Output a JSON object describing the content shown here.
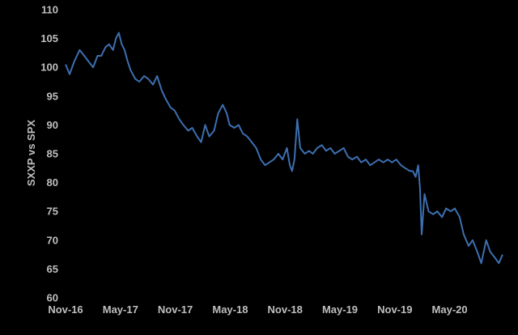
{
  "chart_data": {
    "type": "line",
    "title": "",
    "xlabel": "",
    "ylabel": "SXXP vs SPX",
    "ylim": [
      60,
      110
    ],
    "yticks": [
      "60",
      "65",
      "70",
      "75",
      "80",
      "85",
      "90",
      "95",
      "100",
      "105",
      "110"
    ],
    "xticks": [
      "Nov-16",
      "May-17",
      "Nov-17",
      "May-18",
      "Nov-18",
      "May-19",
      "Nov-19",
      "May-20"
    ],
    "xrange": [
      "2016-11-01",
      "2020-12-31"
    ],
    "grid": false,
    "legend": "none",
    "line_color": "#3d6fb0",
    "series": [
      {
        "x": [
          "2016-11-01",
          "2016-11-15",
          "2016-12-01",
          "2016-12-20",
          "2017-01-05",
          "2017-01-20",
          "2017-02-05",
          "2017-02-20",
          "2017-03-05",
          "2017-03-20",
          "2017-04-01",
          "2017-04-15",
          "2017-04-25",
          "2017-05-05",
          "2017-05-15",
          "2017-05-25",
          "2017-06-05",
          "2017-06-15",
          "2017-07-01",
          "2017-07-15",
          "2017-08-01",
          "2017-08-15",
          "2017-09-01",
          "2017-09-15",
          "2017-10-01",
          "2017-10-15",
          "2017-11-01",
          "2017-11-15",
          "2017-12-01",
          "2017-12-15",
          "2018-01-01",
          "2018-01-15",
          "2018-02-01",
          "2018-02-15",
          "2018-03-01",
          "2018-03-15",
          "2018-04-01",
          "2018-04-15",
          "2018-05-01",
          "2018-05-15",
          "2018-05-25",
          "2018-06-10",
          "2018-06-25",
          "2018-07-10",
          "2018-07-25",
          "2018-08-10",
          "2018-08-25",
          "2018-09-10",
          "2018-09-25",
          "2018-10-10",
          "2018-10-25",
          "2018-11-10",
          "2018-11-25",
          "2018-12-10",
          "2018-12-20",
          "2018-12-28",
          "2019-01-05",
          "2019-01-15",
          "2019-01-25",
          "2019-02-10",
          "2019-02-25",
          "2019-03-10",
          "2019-03-25",
          "2019-04-10",
          "2019-04-25",
          "2019-05-10",
          "2019-05-25",
          "2019-06-10",
          "2019-06-25",
          "2019-07-10",
          "2019-07-25",
          "2019-08-10",
          "2019-08-25",
          "2019-09-10",
          "2019-09-25",
          "2019-10-10",
          "2019-10-25",
          "2019-11-10",
          "2019-11-25",
          "2019-12-10",
          "2019-12-25",
          "2020-01-10",
          "2020-01-25",
          "2020-02-10",
          "2020-02-20",
          "2020-03-01",
          "2020-03-10",
          "2020-03-16",
          "2020-03-22",
          "2020-04-01",
          "2020-04-15",
          "2020-05-01",
          "2020-05-15",
          "2020-06-01",
          "2020-06-15",
          "2020-07-01",
          "2020-07-15",
          "2020-08-01",
          "2020-08-15",
          "2020-09-01",
          "2020-09-15",
          "2020-10-01",
          "2020-10-15",
          "2020-11-01",
          "2020-11-15",
          "2020-12-01",
          "2020-12-15",
          "2020-12-28"
        ],
        "y": [
          100.5,
          98.8,
          101,
          103,
          102,
          101,
          100,
          102,
          102,
          103.5,
          104,
          103,
          105,
          106,
          104,
          103,
          101,
          99.5,
          98,
          97.5,
          98.5,
          98,
          97,
          98.5,
          96,
          94.5,
          93,
          92.5,
          91,
          90,
          89,
          89.5,
          88,
          87,
          90,
          88,
          89,
          92,
          93.5,
          92,
          90,
          89.5,
          90,
          88.5,
          88,
          87,
          86,
          84,
          83,
          83.5,
          84,
          85,
          84,
          86,
          83,
          82,
          84,
          91,
          86,
          85,
          85.5,
          85,
          86,
          86.5,
          85.5,
          86,
          85,
          85.5,
          86,
          84.5,
          84,
          84.5,
          83.5,
          84,
          83,
          83.5,
          84,
          83.5,
          84,
          83.5,
          84,
          83,
          82.5,
          82,
          82,
          81,
          83,
          79,
          71,
          78,
          75,
          74.5,
          75,
          74,
          75.5,
          75,
          75.5,
          74,
          71,
          69,
          70,
          68,
          66,
          70,
          68,
          67,
          66,
          67.5
        ]
      }
    ]
  }
}
